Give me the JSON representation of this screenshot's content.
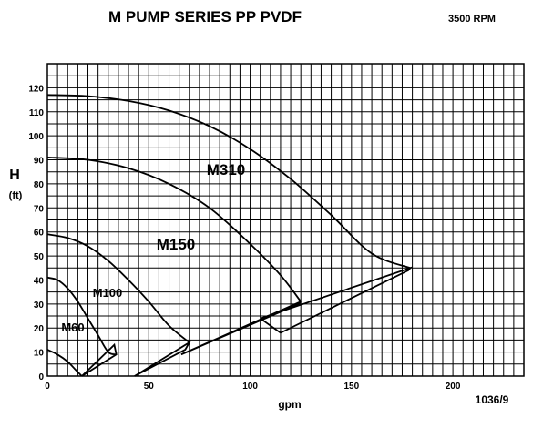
{
  "chart_data": {
    "type": "line",
    "title": "M PUMP SERIES PP PVDF",
    "subtitle": "3500 RPM",
    "xlabel": "gpm",
    "ylabel": "H",
    "yunit": "(ft)",
    "reference": "1036/9",
    "xlim": [
      0,
      235
    ],
    "ylim": [
      0,
      130
    ],
    "xticks": [
      0,
      50,
      100,
      150,
      200
    ],
    "yticks": [
      0,
      10,
      20,
      30,
      40,
      50,
      60,
      70,
      80,
      90,
      100,
      110,
      120
    ],
    "grid": true,
    "series": [
      {
        "name": "M310",
        "x": [
          0,
          20,
          40,
          60,
          80,
          100,
          120,
          140,
          160,
          179
        ],
        "y": [
          117,
          116.5,
          114.5,
          110.5,
          104,
          94.5,
          82,
          67,
          51,
          45
        ]
      },
      {
        "name": "M150",
        "x": [
          0,
          20,
          40,
          60,
          80,
          100,
          115,
          125
        ],
        "y": [
          91,
          90,
          86.5,
          80,
          70,
          55,
          42,
          31
        ]
      },
      {
        "name": "M100",
        "x": [
          0,
          10,
          20,
          30,
          40,
          50,
          60,
          70
        ],
        "y": [
          59,
          57.5,
          54,
          48,
          40,
          31,
          21,
          14
        ]
      },
      {
        "name": "M60",
        "x": [
          0,
          5,
          10,
          15,
          20,
          25,
          30,
          34
        ],
        "y": [
          41,
          40,
          36.5,
          31,
          24,
          17,
          10,
          9
        ]
      },
      {
        "name": "",
        "x": [
          0,
          5,
          10,
          14,
          17
        ],
        "y": [
          11,
          9,
          6,
          2.5,
          0
        ]
      }
    ],
    "envelopes": [
      {
        "x": [
          17,
          34,
          33,
          17
        ],
        "y": [
          0,
          9,
          13,
          0
        ]
      },
      {
        "x": [
          43,
          68,
          70,
          43
        ],
        "y": [
          0,
          11,
          14,
          0
        ]
      },
      {
        "x": [
          66,
          125,
          124,
          66
        ],
        "y": [
          9,
          31,
          30,
          9
        ]
      },
      {
        "x": [
          105,
          179,
          178,
          115,
          105
        ],
        "y": [
          24,
          45,
          44,
          18,
          24
        ]
      }
    ],
    "annotations": [
      {
        "text": "M310",
        "near_series": "M310",
        "placement": "above curve, middle"
      },
      {
        "text": "M150",
        "near_series": "M150",
        "placement": "below curve, middle"
      },
      {
        "text": "M100",
        "near_series": "M100",
        "placement": "below curve"
      },
      {
        "text": "M60",
        "near_series": "M60",
        "placement": "below curve"
      }
    ]
  }
}
